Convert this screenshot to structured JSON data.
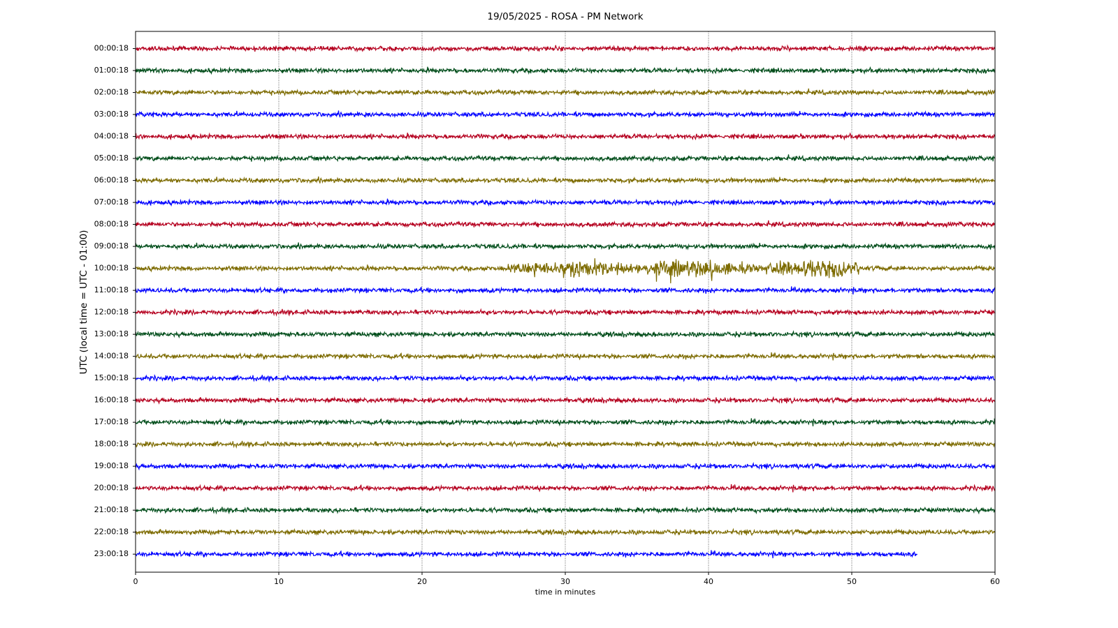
{
  "chart_data": {
    "type": "helicorder",
    "title": "19/05/2025 - ROSA - PM Network",
    "xlabel": "time in minutes",
    "ylabel": "UTC (local time = UTC - 01:00)",
    "xlim": [
      0,
      60
    ],
    "xticks": [
      0,
      10,
      20,
      30,
      40,
      50,
      60
    ],
    "grid": true,
    "series": [
      {
        "name": "00:00:18",
        "color": "#b5001f",
        "x": [
          0,
          60
        ]
      },
      {
        "name": "01:00:18",
        "color": "#004d1a",
        "x": [
          0,
          60
        ]
      },
      {
        "name": "02:00:18",
        "color": "#7d6b00",
        "x": [
          0,
          60
        ]
      },
      {
        "name": "03:00:18",
        "color": "#0000ff",
        "x": [
          0,
          60
        ]
      },
      {
        "name": "04:00:18",
        "color": "#b5001f",
        "x": [
          0,
          60
        ]
      },
      {
        "name": "05:00:18",
        "color": "#004d1a",
        "x": [
          0,
          60
        ]
      },
      {
        "name": "06:00:18",
        "color": "#7d6b00",
        "x": [
          0,
          60
        ]
      },
      {
        "name": "07:00:18",
        "color": "#0000ff",
        "x": [
          0,
          60
        ]
      },
      {
        "name": "08:00:18",
        "color": "#b5001f",
        "x": [
          0,
          60
        ]
      },
      {
        "name": "09:00:18",
        "color": "#004d1a",
        "x": [
          0,
          60
        ]
      },
      {
        "name": "10:00:18",
        "color": "#7d6b00",
        "x": [
          0,
          60
        ],
        "burst": [
          26,
          50.5
        ]
      },
      {
        "name": "11:00:18",
        "color": "#0000ff",
        "x": [
          0,
          60
        ]
      },
      {
        "name": "12:00:18",
        "color": "#b5001f",
        "x": [
          0,
          60
        ]
      },
      {
        "name": "13:00:18",
        "color": "#004d1a",
        "x": [
          0,
          60
        ]
      },
      {
        "name": "14:00:18",
        "color": "#7d6b00",
        "x": [
          0,
          60
        ]
      },
      {
        "name": "15:00:18",
        "color": "#0000ff",
        "x": [
          0,
          60
        ]
      },
      {
        "name": "16:00:18",
        "color": "#b5001f",
        "x": [
          0,
          60
        ]
      },
      {
        "name": "17:00:18",
        "color": "#004d1a",
        "x": [
          0,
          60
        ]
      },
      {
        "name": "18:00:18",
        "color": "#7d6b00",
        "x": [
          0,
          60
        ]
      },
      {
        "name": "19:00:18",
        "color": "#0000ff",
        "x": [
          0,
          60
        ]
      },
      {
        "name": "20:00:18",
        "color": "#b5001f",
        "x": [
          0,
          60
        ]
      },
      {
        "name": "21:00:18",
        "color": "#004d1a",
        "x": [
          0,
          60
        ]
      },
      {
        "name": "22:00:18",
        "color": "#7d6b00",
        "x": [
          0,
          60
        ]
      },
      {
        "name": "23:00:18",
        "color": "#0000ff",
        "x": [
          0,
          54.6
        ]
      }
    ]
  }
}
